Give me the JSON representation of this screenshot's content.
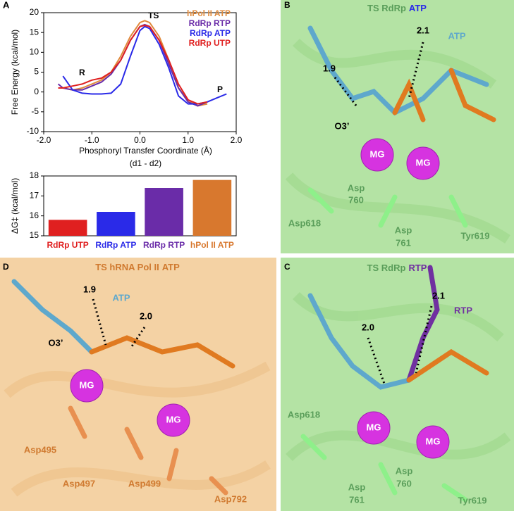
{
  "chart_data": [
    {
      "type": "line",
      "panel": "A",
      "ylabel": "Free Energy (kcal/mol)",
      "xlabel": "Phosphoryl Transfer Coordinate (Å)",
      "xlabel_note": "(d1 - d2)",
      "annotations": [
        "R",
        "TS",
        "P"
      ],
      "x": [
        -1.7,
        -1.6,
        -1.4,
        -1.2,
        -1.0,
        -0.8,
        -0.6,
        -0.4,
        -0.2,
        0,
        0.1,
        0.2,
        0.4,
        0.6,
        0.8,
        1.0,
        1.2,
        1.4,
        1.6,
        1.8
      ],
      "series": [
        {
          "name": "hPol II ATP",
          "color": "#e08a3c",
          "values": [
            null,
            1,
            0.5,
            1,
            2,
            3,
            5,
            9,
            14,
            17.5,
            18,
            17.5,
            14,
            8,
            1,
            -2,
            -3.5,
            -3,
            null,
            null
          ]
        },
        {
          "name": "RdRp RTP",
          "color": "#6a2ca8",
          "values": [
            2,
            1,
            0.5,
            0.5,
            1.5,
            2.5,
            4.5,
            8,
            13,
            16.5,
            17,
            16.5,
            13,
            7,
            1,
            -2.5,
            -3.5,
            -2.5,
            null,
            null
          ]
        },
        {
          "name": "RdRp ATP",
          "color": "#2a2ae8",
          "values": [
            null,
            4,
            0.5,
            -0.3,
            -0.5,
            -0.5,
            -0.3,
            2,
            9,
            15.5,
            16.5,
            16,
            12,
            6,
            -1,
            -3,
            -3,
            -2.5,
            -1.5,
            -0.5
          ]
        },
        {
          "name": "RdRp UTP",
          "color": "#e02020",
          "values": [
            1,
            1,
            1.5,
            2,
            3,
            3.5,
            5,
            8,
            13,
            16.5,
            16.8,
            16.5,
            13,
            8,
            2,
            -2,
            -3,
            -2.5,
            null,
            null
          ]
        }
      ],
      "xlim": [
        -2,
        2
      ],
      "xticks": [
        {
          "value": -2,
          "label": "-2.0"
        },
        {
          "value": -1,
          "label": "-1.0"
        },
        {
          "value": 0,
          "label": "0.0"
        },
        {
          "value": 1,
          "label": "1.0"
        },
        {
          "value": 2,
          "label": "2.0"
        }
      ],
      "ylim": [
        -10,
        20
      ],
      "yticks": [
        -10,
        -5,
        0,
        5,
        10,
        15,
        20
      ]
    },
    {
      "type": "bar",
      "ylabel": "ΔG‡ (kcal/mol)",
      "categories": [
        "RdRp UTP",
        "RdRp ATP",
        "RdRp RTP",
        "hPol II ATP"
      ],
      "values": [
        15.8,
        16.2,
        17.4,
        17.8
      ],
      "colors": [
        "#e02020",
        "#2a2ae8",
        "#6a2ca8",
        "#d8782e"
      ],
      "ylim": [
        15,
        18
      ],
      "yticks": [
        15,
        16,
        17,
        18
      ]
    }
  ],
  "panels": [
    {
      "letter": "B",
      "title": [
        "TS RdRp",
        "ATP"
      ],
      "labels": [
        "1.9",
        "2.1",
        "ATP",
        "O3’",
        "MG",
        "MG",
        "Asp",
        "760",
        "Asp618",
        "Asp",
        "761",
        "Tyr619"
      ]
    },
    {
      "letter": "C",
      "title": [
        "TS RdRp",
        "RTP"
      ],
      "labels": [
        "2.1",
        "RTP",
        "2.0",
        "MG",
        "MG",
        "Asp618",
        "Asp",
        "760",
        "Asp",
        "761",
        "Tyr619"
      ]
    },
    {
      "letter": "D",
      "title": [
        "TS hRNA Pol II",
        "ATP"
      ],
      "labels": [
        "1.9",
        "ATP",
        "2.0",
        "O3’",
        "MG",
        "MG",
        "Asp495",
        "Asp497",
        "Asp499",
        "Asp792"
      ]
    }
  ]
}
